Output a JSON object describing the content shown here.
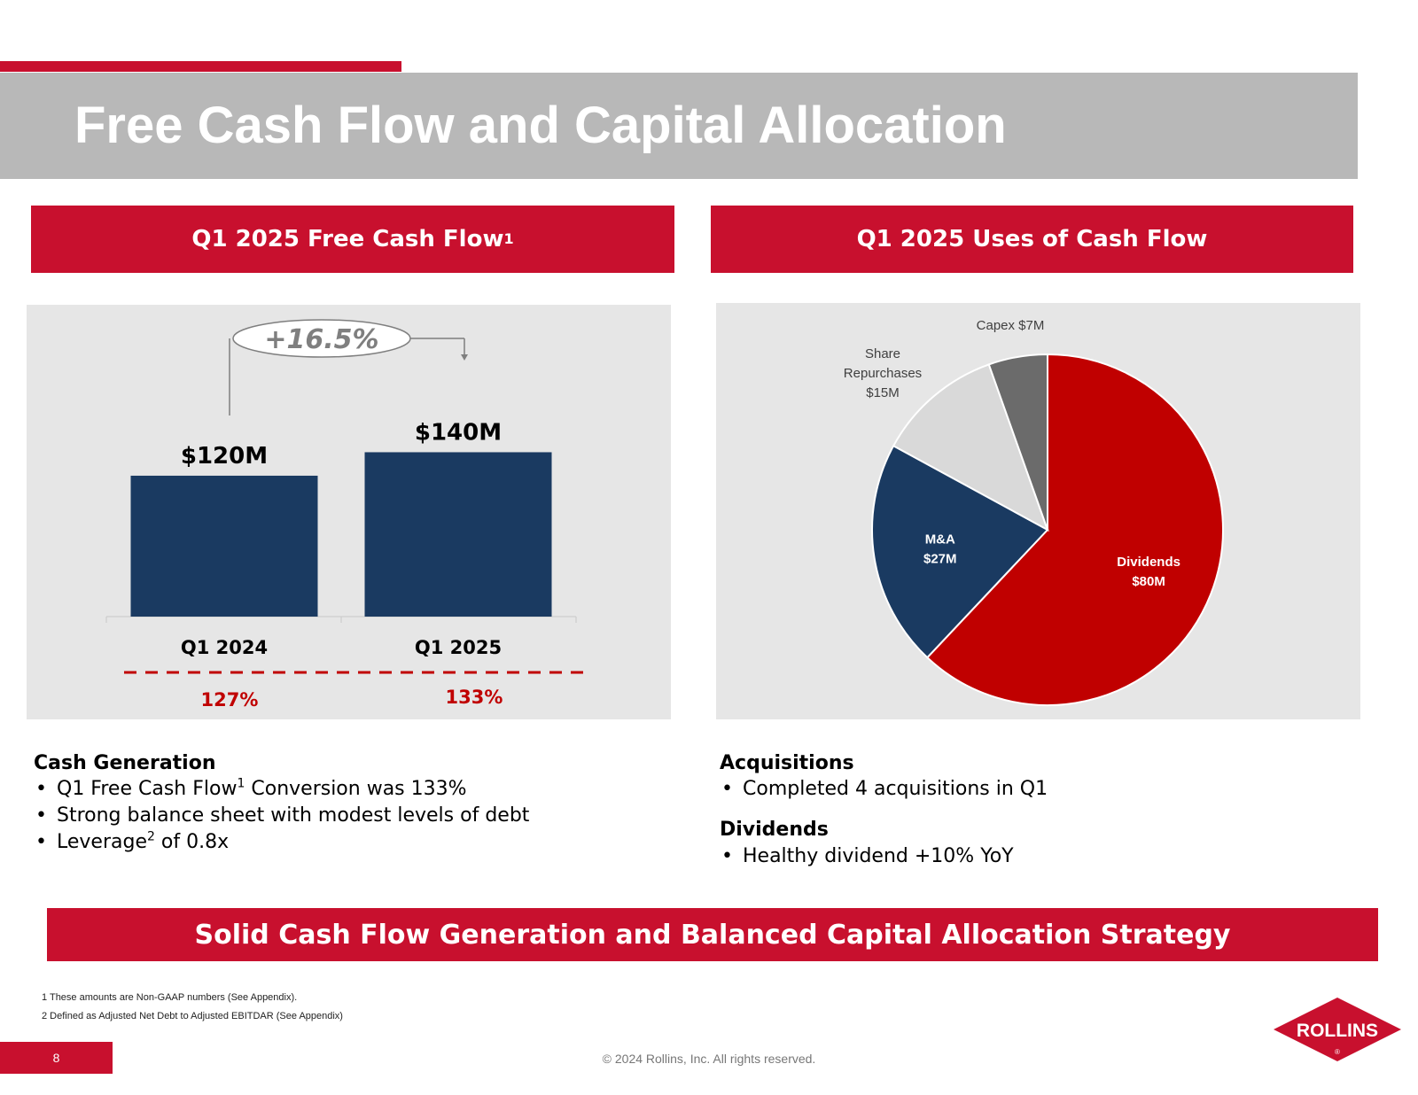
{
  "slide": {
    "title": "Free Cash Flow and Capital Allocation",
    "page_number": "8",
    "copyright": "© 2024 Rollins, Inc. All rights reserved.",
    "logo_text": "ROLLINS",
    "registered_mark": "®"
  },
  "left_panel": {
    "header": "Q1 2025 Free Cash Flow",
    "header_sup": "1",
    "growth_label": "+16.5%",
    "conversion_values": [
      "127%",
      "133%"
    ],
    "section_title": "Cash Generation",
    "bullets": [
      {
        "pre": "Q1 Free Cash Flow",
        "sup": "1",
        "post": " Conversion was 133%"
      },
      {
        "pre": "Strong balance sheet with modest levels of debt",
        "sup": "",
        "post": ""
      },
      {
        "pre": "Leverage",
        "sup": "2",
        "post": "  of 0.8x"
      }
    ]
  },
  "right_panel": {
    "header": "Q1 2025 Uses of Cash Flow",
    "sections": [
      {
        "title": "Acquisitions",
        "bullets": [
          "Completed 4 acquisitions in Q1"
        ]
      },
      {
        "title": "Dividends",
        "bullets": [
          "Healthy dividend +10% YoY"
        ]
      }
    ]
  },
  "strategy_banner": "Solid Cash Flow Generation and Balanced Capital Allocation Strategy",
  "footnotes": [
    "1 These amounts are Non-GAAP numbers (See Appendix).",
    "2 Defined as Adjusted Net Debt to Adjusted EBITDAR (See Appendix)"
  ],
  "colors": {
    "brand_red": "#c8102e",
    "navy": "#1a3a61",
    "dividends_red": "#c00000",
    "capex_gray": "#6b6b6b",
    "repurchase_gray": "#d9d9d9",
    "panel_bg": "#e6e6e6"
  },
  "chart_data": [
    {
      "type": "bar",
      "title": "Q1 2025 Free Cash Flow",
      "categories": [
        "Q1 2024",
        "Q1 2025"
      ],
      "values": [
        120,
        140
      ],
      "data_labels": [
        "$120M",
        "$140M"
      ],
      "units": "$M",
      "annotation": "+16.5%",
      "xlabel": "",
      "ylabel": "",
      "ylim": [
        0,
        166
      ],
      "grid": false
    },
    {
      "type": "pie",
      "title": "Q1 2025 Uses of Cash Flow",
      "slices": [
        {
          "label": "Dividends",
          "value_label": "$80M",
          "value": 80
        },
        {
          "label": "M&A",
          "value_label": "$27M",
          "value": 27
        },
        {
          "label": "Share Repurchases",
          "value_label": "$15M",
          "value": 15
        },
        {
          "label": "Capex",
          "value_label": "$7M",
          "value": 7
        }
      ],
      "units": "$M"
    }
  ]
}
